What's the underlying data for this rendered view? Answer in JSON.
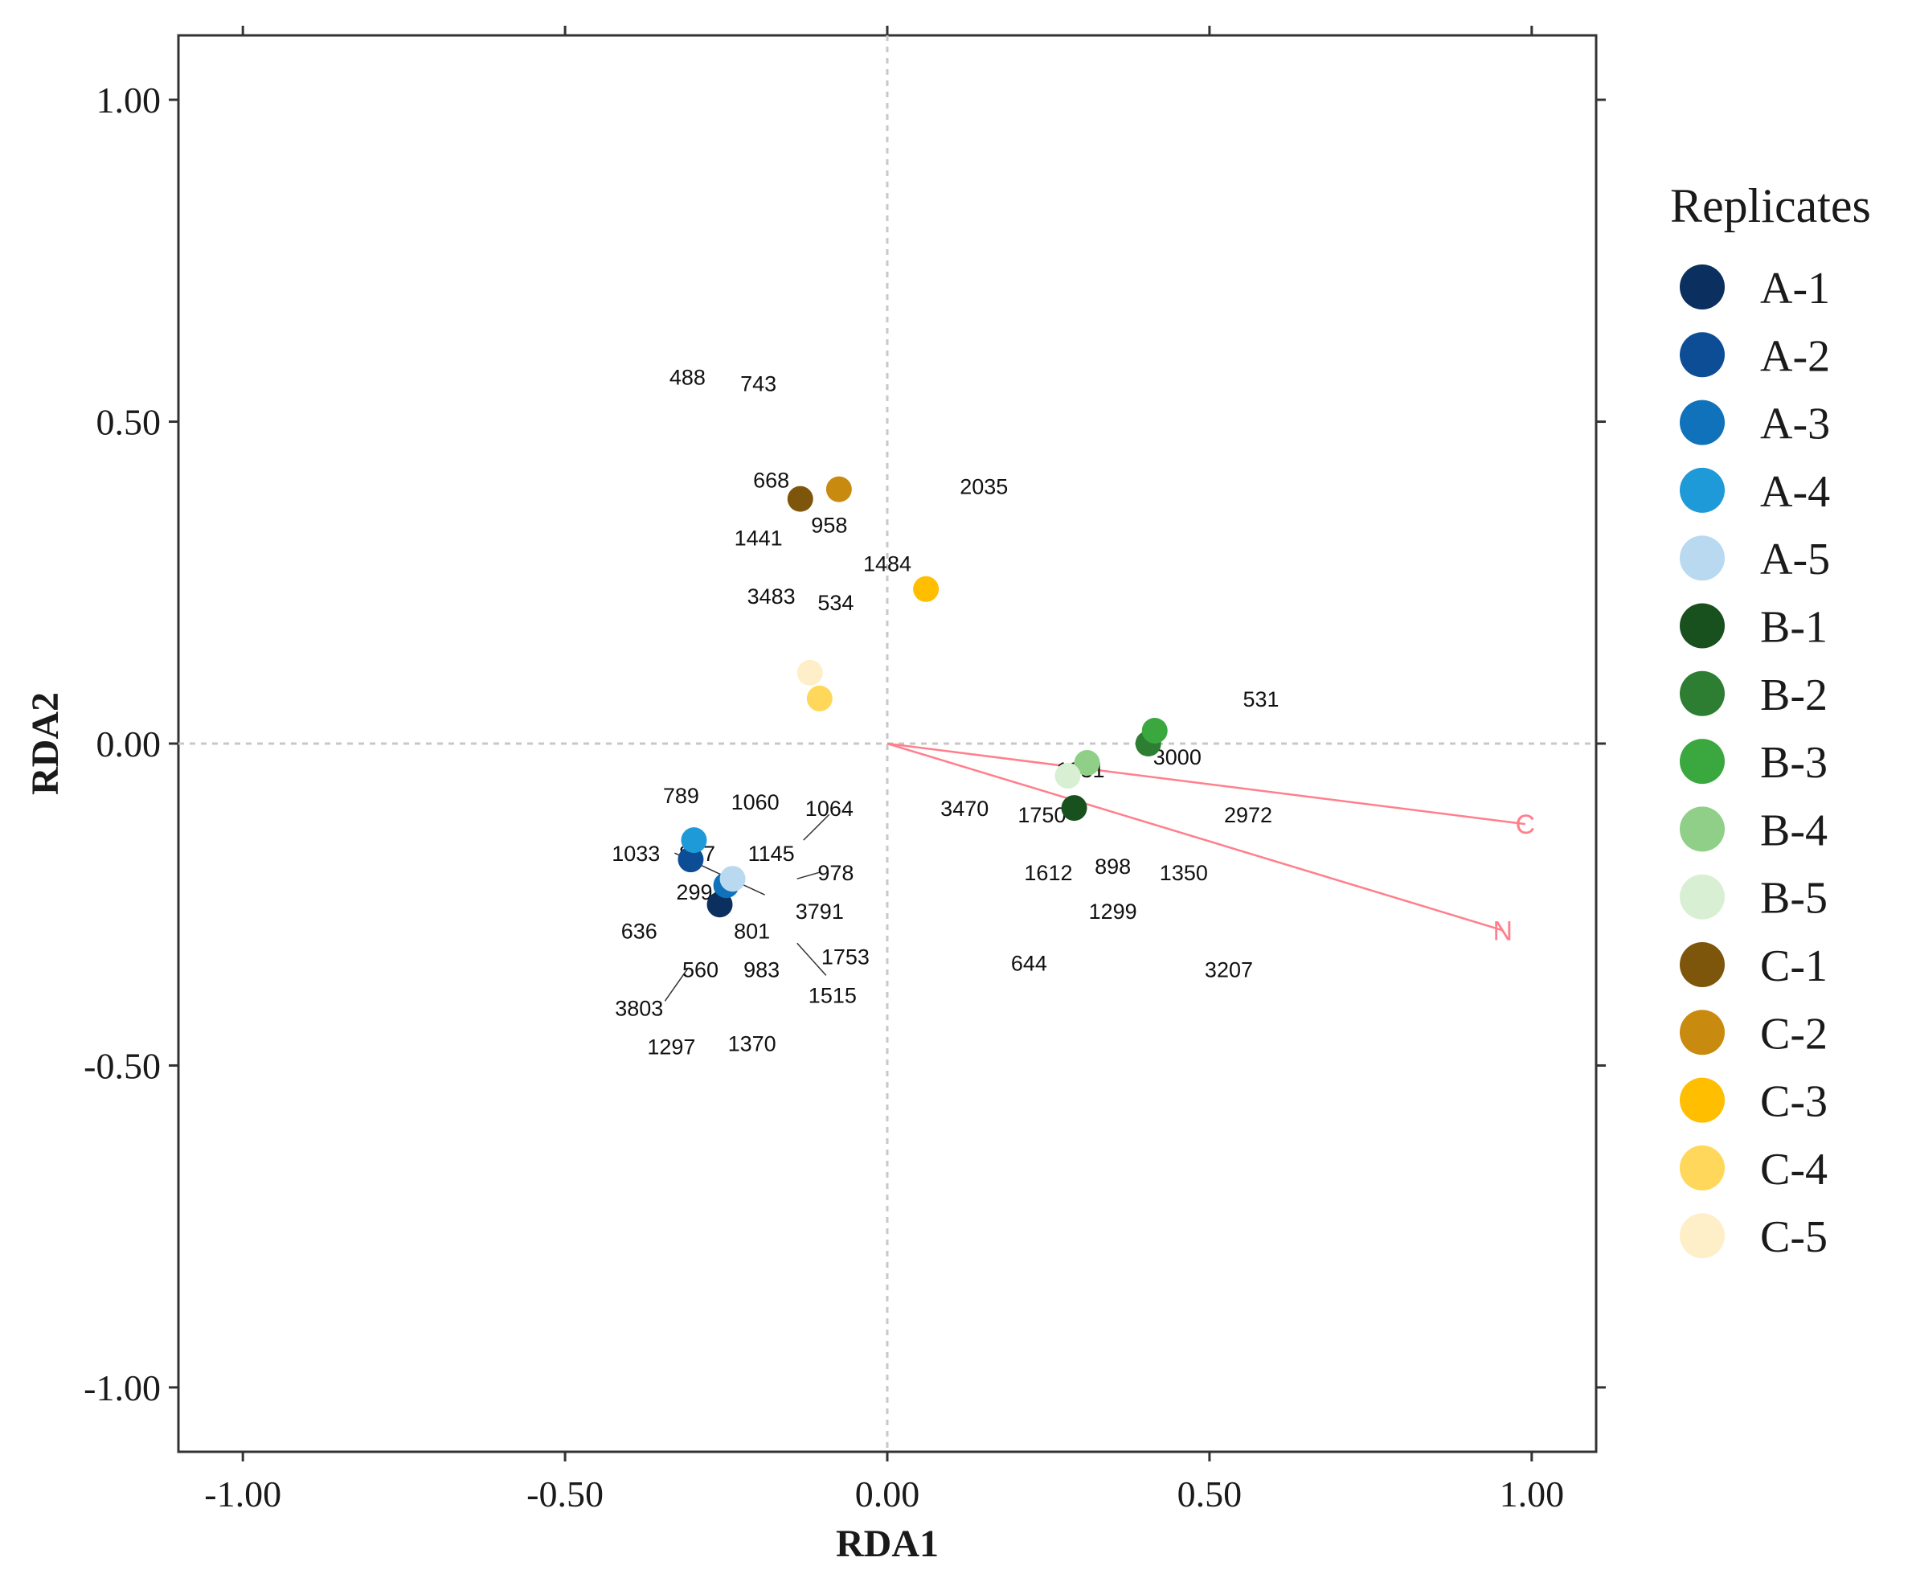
{
  "chart_data": {
    "type": "scatter",
    "xlabel": "RDA1",
    "ylabel": "RDA2",
    "xlim": [
      -1.1,
      1.1
    ],
    "ylim": [
      -1.1,
      1.1
    ],
    "xticks": [
      -1.0,
      -0.5,
      0.0,
      0.5,
      1.0
    ],
    "yticks": [
      -1.0,
      -0.5,
      0.0,
      0.5,
      1.0
    ],
    "xtick_labels": [
      "-1.00",
      "-0.50",
      "0.00",
      "0.50",
      "1.00"
    ],
    "ytick_labels": [
      "-1.00",
      "-0.50",
      "0.00",
      "0.50",
      "1.00"
    ],
    "grid": false,
    "reference_lines": {
      "x": 0,
      "y": 0,
      "style": "dashed"
    },
    "legend": {
      "title": "Replicates",
      "position": "right",
      "entries": [
        {
          "label": "A-1",
          "color": "#0b2f5e"
        },
        {
          "label": "A-2",
          "color": "#0d4d96"
        },
        {
          "label": "A-3",
          "color": "#0f72ba"
        },
        {
          "label": "A-4",
          "color": "#1e9ad9"
        },
        {
          "label": "A-5",
          "color": "#b8d9f0"
        },
        {
          "label": "B-1",
          "color": "#19511e"
        },
        {
          "label": "B-2",
          "color": "#2d7d33"
        },
        {
          "label": "B-3",
          "color": "#3aa83f"
        },
        {
          "label": "B-4",
          "color": "#8fcf87"
        },
        {
          "label": "B-5",
          "color": "#d9efd4"
        },
        {
          "label": "C-1",
          "color": "#7d560c"
        },
        {
          "label": "C-2",
          "color": "#c88a0f"
        },
        {
          "label": "C-3",
          "color": "#ffbe00"
        },
        {
          "label": "C-4",
          "color": "#ffd75a"
        },
        {
          "label": "C-5",
          "color": "#ffefc8"
        }
      ]
    },
    "samples": [
      {
        "label": "A-1",
        "x": -0.26,
        "y": -0.25
      },
      {
        "label": "A-2",
        "x": -0.305,
        "y": -0.18
      },
      {
        "label": "A-3",
        "x": -0.25,
        "y": -0.22
      },
      {
        "label": "A-4",
        "x": -0.3,
        "y": -0.15
      },
      {
        "label": "A-5",
        "x": -0.24,
        "y": -0.21
      },
      {
        "label": "B-1",
        "x": 0.29,
        "y": -0.1
      },
      {
        "label": "B-2",
        "x": 0.405,
        "y": 0.0
      },
      {
        "label": "B-3",
        "x": 0.415,
        "y": 0.02
      },
      {
        "label": "B-4",
        "x": 0.31,
        "y": -0.03
      },
      {
        "label": "B-5",
        "x": 0.28,
        "y": -0.05
      },
      {
        "label": "C-1",
        "x": -0.135,
        "y": 0.38
      },
      {
        "label": "C-2",
        "x": -0.075,
        "y": 0.395
      },
      {
        "label": "C-3",
        "x": 0.06,
        "y": 0.24
      },
      {
        "label": "C-4",
        "x": -0.105,
        "y": 0.07
      },
      {
        "label": "C-5",
        "x": -0.12,
        "y": 0.11
      }
    ],
    "species": [
      {
        "label": "488",
        "x": -0.31,
        "y": 0.57
      },
      {
        "label": "743",
        "x": -0.2,
        "y": 0.56
      },
      {
        "label": "668",
        "x": -0.18,
        "y": 0.41
      },
      {
        "label": "2035",
        "x": 0.15,
        "y": 0.4
      },
      {
        "label": "958",
        "x": -0.09,
        "y": 0.34
      },
      {
        "label": "1441",
        "x": -0.2,
        "y": 0.32
      },
      {
        "label": "1484",
        "x": 0.0,
        "y": 0.28
      },
      {
        "label": "3483",
        "x": -0.18,
        "y": 0.23
      },
      {
        "label": "534",
        "x": -0.08,
        "y": 0.22
      },
      {
        "label": "531",
        "x": 0.58,
        "y": 0.07
      },
      {
        "label": "3000",
        "x": 0.45,
        "y": -0.02
      },
      {
        "label": "1031",
        "x": 0.3,
        "y": -0.04
      },
      {
        "label": "3470",
        "x": 0.12,
        "y": -0.1
      },
      {
        "label": "1750",
        "x": 0.24,
        "y": -0.11
      },
      {
        "label": "2972",
        "x": 0.56,
        "y": -0.11
      },
      {
        "label": "1612",
        "x": 0.25,
        "y": -0.2
      },
      {
        "label": "898",
        "x": 0.35,
        "y": -0.19
      },
      {
        "label": "1350",
        "x": 0.46,
        "y": -0.2
      },
      {
        "label": "1299",
        "x": 0.35,
        "y": -0.26
      },
      {
        "label": "644",
        "x": 0.22,
        "y": -0.34
      },
      {
        "label": "3207",
        "x": 0.53,
        "y": -0.35
      },
      {
        "label": "789",
        "x": -0.32,
        "y": -0.08
      },
      {
        "label": "1060",
        "x": -0.205,
        "y": -0.09
      },
      {
        "label": "1064",
        "x": -0.09,
        "y": -0.1
      },
      {
        "label": "1033",
        "x": -0.39,
        "y": -0.17
      },
      {
        "label": "847",
        "x": -0.295,
        "y": -0.17
      },
      {
        "label": "1145",
        "x": -0.18,
        "y": -0.17
      },
      {
        "label": "978",
        "x": -0.08,
        "y": -0.2
      },
      {
        "label": "2998",
        "x": -0.29,
        "y": -0.23
      },
      {
        "label": "3791",
        "x": -0.105,
        "y": -0.26
      },
      {
        "label": "636",
        "x": -0.385,
        "y": -0.29
      },
      {
        "label": "801",
        "x": -0.21,
        "y": -0.29
      },
      {
        "label": "1753",
        "x": -0.065,
        "y": -0.33
      },
      {
        "label": "560",
        "x": -0.29,
        "y": -0.35
      },
      {
        "label": "983",
        "x": -0.195,
        "y": -0.35
      },
      {
        "label": "1515",
        "x": -0.085,
        "y": -0.39
      },
      {
        "label": "3803",
        "x": -0.385,
        "y": -0.41
      },
      {
        "label": "1297",
        "x": -0.335,
        "y": -0.47
      },
      {
        "label": "1370",
        "x": -0.21,
        "y": -0.465
      }
    ],
    "vectors": [
      {
        "label": "C",
        "x": 0.99,
        "y": -0.125,
        "color": "#ff7f8c"
      },
      {
        "label": "N",
        "x": 0.955,
        "y": -0.29,
        "color": "#ff7f8c"
      }
    ]
  }
}
